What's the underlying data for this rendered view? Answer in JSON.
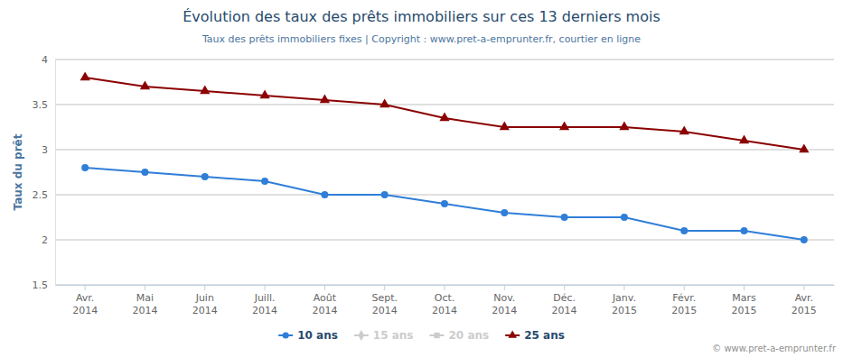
{
  "chart_data": {
    "type": "line",
    "title": "Évolution des taux des prêts immobiliers sur ces 13 derniers mois",
    "subtitle": "Taux des prêts immobiliers fixes | Copyright : www.pret-a-emprunter.fr, courtier en ligne",
    "y_label": "Taux du prêt",
    "credits": "© www.pret-a-emprunter.fr",
    "categories": [
      "Avr. 2014",
      "Mai 2014",
      "Juin 2014",
      "Juill. 2014",
      "Août 2014",
      "Sept. 2014",
      "Oct. 2014",
      "Nov. 2014",
      "Déc. 2014",
      "Janv. 2015",
      "Févr. 2015",
      "Mars 2015",
      "Avr. 2015"
    ],
    "ylim": [
      1.5,
      4
    ],
    "yticks": [
      1.5,
      2,
      2.5,
      3,
      3.5,
      4
    ],
    "grid": true,
    "legend": "bottom",
    "series": [
      {
        "name": "10 ans",
        "color": "#2f7ed8",
        "marker": "circle",
        "values": [
          2.8,
          2.75,
          2.7,
          2.65,
          2.5,
          2.5,
          2.4,
          2.3,
          2.25,
          2.25,
          2.1,
          2.1,
          2.0
        ]
      },
      {
        "name": "15 ans",
        "color": "#cccccc",
        "marker": "diamond",
        "values": [
          null,
          null,
          null,
          null,
          null,
          null,
          null,
          null,
          null,
          null,
          null,
          null,
          null
        ]
      },
      {
        "name": "20 ans",
        "color": "#cccccc",
        "marker": "square",
        "values": [
          null,
          null,
          null,
          null,
          null,
          null,
          null,
          null,
          null,
          null,
          null,
          null,
          null
        ]
      },
      {
        "name": "25 ans",
        "color": "#8b0000",
        "marker": "triangle",
        "values": [
          3.8,
          3.7,
          3.65,
          3.6,
          3.55,
          3.5,
          3.35,
          3.25,
          3.25,
          3.25,
          3.2,
          3.1,
          3.0
        ]
      }
    ]
  }
}
